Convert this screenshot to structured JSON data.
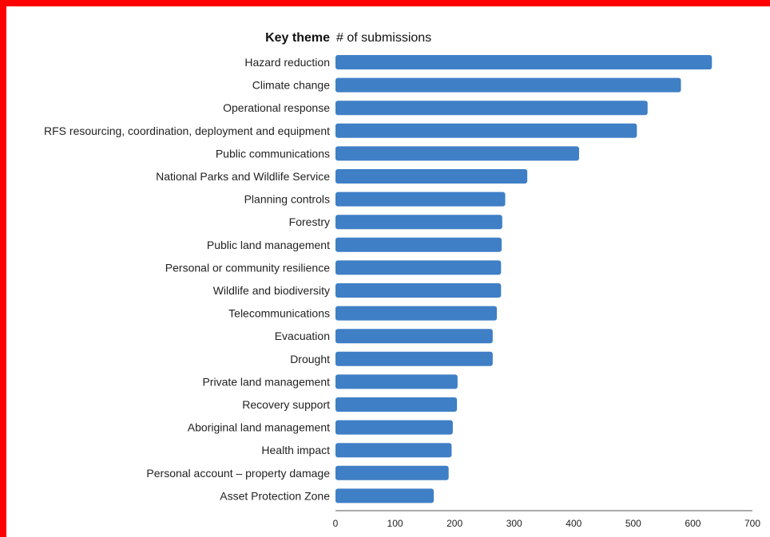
{
  "chart_data": {
    "type": "bar",
    "orientation": "horizontal",
    "header": {
      "category_heading": "Key theme",
      "value_heading": "# of submissions"
    },
    "categories": [
      "Hazard reduction",
      "Climate change",
      "Operational response",
      "RFS resourcing, coordination, deployment and equipment",
      "Public communications",
      "National Parks and Wildlife Service",
      "Planning controls",
      "Forestry",
      "Public land management",
      "Personal or community resilience",
      "Wildlife and biodiversity",
      "Telecommunications",
      "Evacuation",
      "Drought",
      "Private land management",
      "Recovery support",
      "Aboriginal land management",
      "Health impact",
      "Personal account – property damage",
      "Asset Protection Zone"
    ],
    "values": [
      632,
      580,
      524,
      506,
      409,
      322,
      285,
      280,
      279,
      278,
      278,
      271,
      264,
      264,
      205,
      204,
      197,
      195,
      190,
      165
    ],
    "xlim": [
      0,
      700
    ],
    "xticks": [
      "0",
      "100",
      "200",
      "300",
      "400",
      "500",
      "600",
      "700"
    ],
    "grid": false,
    "colors": {
      "bar": "#3f7fc6",
      "frame": "#ff0000",
      "axis": "#555555"
    }
  }
}
